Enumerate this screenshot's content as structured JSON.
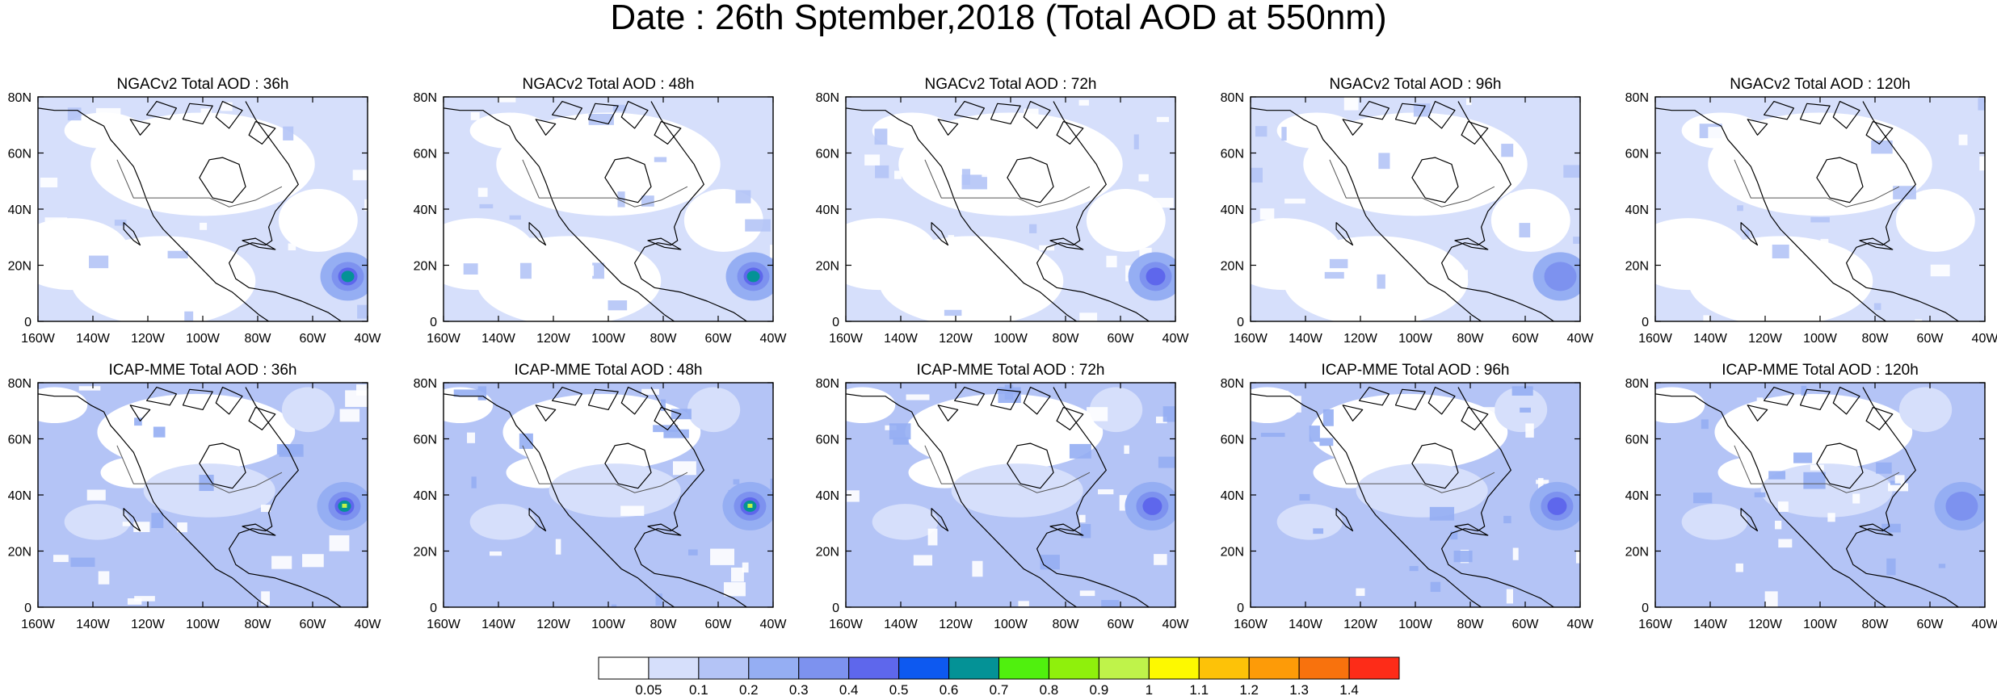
{
  "title": "Date : 26th Sptember,2018 (Total AOD at 550nm)",
  "panels": [
    {
      "title": "NGACv2 Total AOD : 36h",
      "model": "NGAC",
      "hotspot": "strong"
    },
    {
      "title": "NGACv2 Total AOD : 48h",
      "model": "NGAC",
      "hotspot": "strong"
    },
    {
      "title": "NGACv2 Total AOD : 72h",
      "model": "NGAC",
      "hotspot": "medium"
    },
    {
      "title": "NGACv2 Total AOD : 96h",
      "model": "NGAC",
      "hotspot": "weak"
    },
    {
      "title": "NGACv2 Total AOD : 120h",
      "model": "NGAC",
      "hotspot": "none"
    },
    {
      "title": "ICAP-MME Total AOD : 36h",
      "model": "ICAP",
      "hotspot": "strong"
    },
    {
      "title": "ICAP-MME Total AOD : 48h",
      "model": "ICAP",
      "hotspot": "strong"
    },
    {
      "title": "ICAP-MME Total AOD : 72h",
      "model": "ICAP",
      "hotspot": "medium"
    },
    {
      "title": "ICAP-MME Total AOD : 96h",
      "model": "ICAP",
      "hotspot": "medium"
    },
    {
      "title": "ICAP-MME Total AOD : 120h",
      "model": "ICAP",
      "hotspot": "weak"
    }
  ],
  "lat_labels": [
    "80N",
    "60N",
    "40N",
    "20N",
    "0"
  ],
  "lon_labels": [
    "160W",
    "140W",
    "120W",
    "100W",
    "80W",
    "60W",
    "40W"
  ],
  "colorbar": {
    "colors": [
      "#ffffff",
      "#d6dffb",
      "#b4c4f6",
      "#95aef3",
      "#7d92ef",
      "#5e67ec",
      "#0d59f0",
      "#049296",
      "#50f00e",
      "#8ff00c",
      "#bff34a",
      "#fdf900",
      "#fdc208",
      "#fd9b08",
      "#f8720d",
      "#fd2c18"
    ],
    "labels": [
      "0.05",
      "0.1",
      "0.2",
      "0.3",
      "0.4",
      "0.5",
      "0.6",
      "0.7",
      "0.8",
      "0.9",
      "1",
      "1.1",
      "1.2",
      "1.3",
      "1.4"
    ]
  }
}
